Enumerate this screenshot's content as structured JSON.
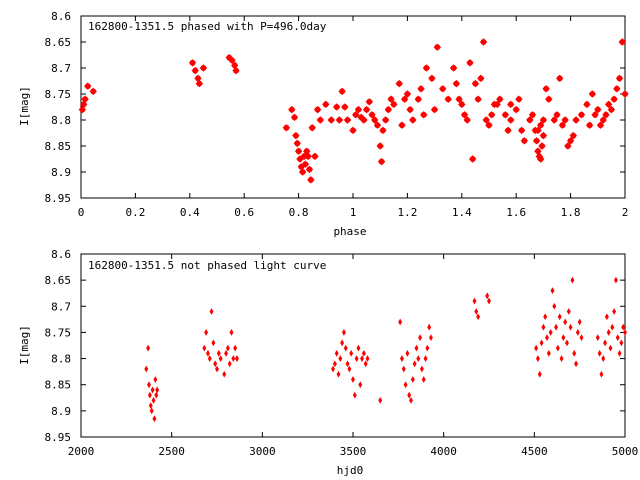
{
  "chart_data": [
    {
      "type": "scatter",
      "title": "162800-1351.5 phased with P=496.0day",
      "xlabel": "phase",
      "ylabel": "I[mag]",
      "xlim": [
        0,
        2
      ],
      "ylim": [
        8.95,
        8.6
      ],
      "y_inverted": true,
      "grid": false,
      "marker_color": "#ff0000",
      "xticks": [
        "0",
        "0.2",
        "0.4",
        "0.6",
        "0.8",
        "1",
        "1.2",
        "1.4",
        "1.6",
        "1.8",
        "2"
      ],
      "yticks": [
        "8.6",
        "8.65",
        "8.7",
        "8.75",
        "8.8",
        "8.85",
        "8.9",
        "8.95"
      ],
      "series": [
        {
          "points": [
            [
              0.005,
              8.78
            ],
            [
              0.01,
              8.77
            ],
            [
              0.015,
              8.76
            ],
            [
              0.025,
              8.735
            ],
            [
              0.045,
              8.745
            ],
            [
              0.41,
              8.69
            ],
            [
              0.42,
              8.705
            ],
            [
              0.43,
              8.72
            ],
            [
              0.435,
              8.73
            ],
            [
              0.545,
              8.68
            ],
            [
              0.555,
              8.685
            ],
            [
              0.565,
              8.695
            ],
            [
              0.57,
              8.705
            ],
            [
              0.755,
              8.815
            ],
            [
              0.775,
              8.78
            ],
            [
              0.785,
              8.795
            ],
            [
              0.79,
              8.83
            ],
            [
              0.795,
              8.845
            ],
            [
              0.8,
              8.86
            ],
            [
              0.805,
              8.875
            ],
            [
              0.81,
              8.89
            ],
            [
              0.815,
              8.9
            ],
            [
              0.82,
              8.87
            ],
            [
              0.825,
              8.885
            ],
            [
              0.83,
              8.86
            ],
            [
              0.835,
              8.87
            ],
            [
              0.84,
              8.895
            ],
            [
              0.845,
              8.915
            ],
            [
              0.85,
              8.815
            ],
            [
              0.86,
              8.87
            ],
            [
              0.87,
              8.78
            ],
            [
              0.88,
              8.8
            ],
            [
              0.9,
              8.77
            ],
            [
              0.92,
              8.8
            ],
            [
              0.94,
              8.775
            ],
            [
              0.95,
              8.8
            ],
            [
              0.96,
              8.745
            ],
            [
              0.97,
              8.775
            ],
            [
              0.98,
              8.8
            ],
            [
              1.0,
              8.82
            ],
            [
              1.01,
              8.79
            ],
            [
              1.02,
              8.78
            ],
            [
              1.03,
              8.795
            ],
            [
              1.04,
              8.8
            ],
            [
              1.05,
              8.78
            ],
            [
              1.06,
              8.765
            ],
            [
              1.07,
              8.79
            ],
            [
              1.08,
              8.8
            ],
            [
              1.09,
              8.81
            ],
            [
              1.1,
              8.85
            ],
            [
              1.105,
              8.88
            ],
            [
              1.11,
              8.82
            ],
            [
              1.12,
              8.8
            ],
            [
              1.13,
              8.78
            ],
            [
              1.14,
              8.76
            ],
            [
              1.15,
              8.77
            ],
            [
              1.17,
              8.73
            ],
            [
              1.18,
              8.81
            ],
            [
              1.19,
              8.76
            ],
            [
              1.2,
              8.75
            ],
            [
              1.21,
              8.78
            ],
            [
              1.22,
              8.8
            ],
            [
              1.24,
              8.76
            ],
            [
              1.25,
              8.74
            ],
            [
              1.26,
              8.79
            ],
            [
              1.27,
              8.7
            ],
            [
              1.29,
              8.72
            ],
            [
              1.31,
              8.66
            ],
            [
              1.33,
              8.74
            ],
            [
              1.35,
              8.76
            ],
            [
              1.37,
              8.7
            ],
            [
              1.38,
              8.73
            ],
            [
              1.39,
              8.76
            ],
            [
              1.4,
              8.77
            ],
            [
              1.41,
              8.79
            ],
            [
              1.42,
              8.8
            ],
            [
              1.43,
              8.69
            ],
            [
              1.45,
              8.73
            ],
            [
              1.46,
              8.76
            ],
            [
              1.47,
              8.72
            ],
            [
              1.48,
              8.65
            ],
            [
              1.49,
              8.8
            ],
            [
              1.5,
              8.81
            ],
            [
              1.51,
              8.79
            ],
            [
              1.52,
              8.77
            ],
            [
              1.54,
              8.76
            ],
            [
              1.56,
              8.79
            ],
            [
              1.58,
              8.8
            ],
            [
              1.6,
              8.78
            ],
            [
              1.61,
              8.76
            ],
            [
              1.62,
              8.82
            ],
            [
              1.63,
              8.84
            ],
            [
              1.65,
              8.8
            ],
            [
              1.66,
              8.79
            ],
            [
              1.67,
              8.82
            ],
            [
              1.675,
              8.84
            ],
            [
              1.68,
              8.86
            ],
            [
              1.685,
              8.87
            ],
            [
              1.69,
              8.875
            ],
            [
              1.695,
              8.85
            ],
            [
              1.7,
              8.8
            ],
            [
              1.71,
              8.74
            ],
            [
              1.72,
              8.76
            ],
            [
              1.74,
              8.8
            ],
            [
              1.75,
              8.79
            ],
            [
              1.77,
              8.81
            ],
            [
              1.79,
              8.85
            ],
            [
              1.8,
              8.84
            ],
            [
              1.81,
              8.83
            ],
            [
              1.82,
              8.8
            ],
            [
              1.84,
              8.79
            ],
            [
              1.86,
              8.77
            ],
            [
              1.88,
              8.75
            ],
            [
              1.9,
              8.78
            ],
            [
              1.91,
              8.81
            ],
            [
              1.92,
              8.8
            ],
            [
              1.93,
              8.79
            ],
            [
              1.94,
              8.77
            ],
            [
              1.95,
              8.78
            ],
            [
              1.96,
              8.76
            ],
            [
              1.97,
              8.74
            ],
            [
              1.98,
              8.72
            ],
            [
              1.99,
              8.65
            ],
            [
              2.0,
              8.75
            ],
            [
              0.45,
              8.7
            ],
            [
              1.3,
              8.78
            ],
            [
              1.44,
              8.875
            ],
            [
              1.53,
              8.77
            ],
            [
              1.57,
              8.82
            ],
            [
              1.58,
              8.77
            ],
            [
              1.68,
              8.82
            ],
            [
              1.69,
              8.81
            ],
            [
              1.7,
              8.83
            ],
            [
              1.76,
              8.72
            ],
            [
              1.78,
              8.8
            ],
            [
              1.87,
              8.81
            ],
            [
              1.89,
              8.79
            ]
          ]
        }
      ]
    },
    {
      "type": "scatter",
      "title": "162800-1351.5 not phased light curve",
      "xlabel": "hjd0",
      "ylabel": "I[mag]",
      "xlim": [
        2000,
        5000
      ],
      "ylim": [
        8.95,
        8.6
      ],
      "y_inverted": true,
      "grid": false,
      "marker_color": "#ff0000",
      "xticks": [
        "2000",
        "2500",
        "3000",
        "3500",
        "4000",
        "4500",
        "5000"
      ],
      "yticks": [
        "8.6",
        "8.65",
        "8.7",
        "8.75",
        "8.8",
        "8.85",
        "8.9",
        "8.95"
      ],
      "series": [
        {
          "points": [
            [
              2360,
              8.82
            ],
            [
              2370,
              8.78
            ],
            [
              2375,
              8.85
            ],
            [
              2380,
              8.87
            ],
            [
              2385,
              8.89
            ],
            [
              2390,
              8.9
            ],
            [
              2395,
              8.86
            ],
            [
              2400,
              8.88
            ],
            [
              2405,
              8.915
            ],
            [
              2410,
              8.84
            ],
            [
              2415,
              8.87
            ],
            [
              2420,
              8.86
            ],
            [
              2680,
              8.78
            ],
            [
              2690,
              8.75
            ],
            [
              2700,
              8.79
            ],
            [
              2710,
              8.8
            ],
            [
              2720,
              8.71
            ],
            [
              2730,
              8.77
            ],
            [
              2740,
              8.81
            ],
            [
              2750,
              8.82
            ],
            [
              2760,
              8.79
            ],
            [
              2770,
              8.8
            ],
            [
              2790,
              8.83
            ],
            [
              2800,
              8.79
            ],
            [
              2810,
              8.78
            ],
            [
              2820,
              8.81
            ],
            [
              2830,
              8.75
            ],
            [
              2840,
              8.8
            ],
            [
              2850,
              8.78
            ],
            [
              2860,
              8.8
            ],
            [
              3390,
              8.82
            ],
            [
              3400,
              8.81
            ],
            [
              3410,
              8.79
            ],
            [
              3420,
              8.83
            ],
            [
              3430,
              8.8
            ],
            [
              3440,
              8.77
            ],
            [
              3450,
              8.75
            ],
            [
              3460,
              8.78
            ],
            [
              3470,
              8.81
            ],
            [
              3480,
              8.82
            ],
            [
              3490,
              8.79
            ],
            [
              3500,
              8.84
            ],
            [
              3510,
              8.87
            ],
            [
              3520,
              8.8
            ],
            [
              3530,
              8.78
            ],
            [
              3540,
              8.85
            ],
            [
              3550,
              8.8
            ],
            [
              3560,
              8.79
            ],
            [
              3570,
              8.81
            ],
            [
              3580,
              8.8
            ],
            [
              3650,
              8.88
            ],
            [
              3760,
              8.73
            ],
            [
              3770,
              8.8
            ],
            [
              3780,
              8.82
            ],
            [
              3790,
              8.85
            ],
            [
              3800,
              8.79
            ],
            [
              3810,
              8.87
            ],
            [
              3820,
              8.88
            ],
            [
              3830,
              8.84
            ],
            [
              3840,
              8.81
            ],
            [
              3850,
              8.78
            ],
            [
              3860,
              8.8
            ],
            [
              3870,
              8.76
            ],
            [
              3880,
              8.82
            ],
            [
              3890,
              8.84
            ],
            [
              3900,
              8.8
            ],
            [
              3910,
              8.78
            ],
            [
              3920,
              8.74
            ],
            [
              3930,
              8.76
            ],
            [
              4170,
              8.69
            ],
            [
              4180,
              8.71
            ],
            [
              4190,
              8.72
            ],
            [
              4240,
              8.68
            ],
            [
              4250,
              8.69
            ],
            [
              4510,
              8.78
            ],
            [
              4520,
              8.8
            ],
            [
              4530,
              8.83
            ],
            [
              4540,
              8.77
            ],
            [
              4550,
              8.74
            ],
            [
              4560,
              8.72
            ],
            [
              4570,
              8.76
            ],
            [
              4580,
              8.79
            ],
            [
              4590,
              8.75
            ],
            [
              4600,
              8.67
            ],
            [
              4610,
              8.7
            ],
            [
              4620,
              8.74
            ],
            [
              4630,
              8.78
            ],
            [
              4640,
              8.72
            ],
            [
              4650,
              8.8
            ],
            [
              4660,
              8.76
            ],
            [
              4670,
              8.73
            ],
            [
              4680,
              8.77
            ],
            [
              4690,
              8.71
            ],
            [
              4700,
              8.74
            ],
            [
              4710,
              8.65
            ],
            [
              4720,
              8.79
            ],
            [
              4730,
              8.81
            ],
            [
              4740,
              8.75
            ],
            [
              4750,
              8.73
            ],
            [
              4760,
              8.76
            ],
            [
              4850,
              8.76
            ],
            [
              4860,
              8.79
            ],
            [
              4870,
              8.83
            ],
            [
              4880,
              8.8
            ],
            [
              4890,
              8.77
            ],
            [
              4900,
              8.72
            ],
            [
              4910,
              8.75
            ],
            [
              4920,
              8.78
            ],
            [
              4930,
              8.74
            ],
            [
              4940,
              8.71
            ],
            [
              4950,
              8.65
            ],
            [
              4960,
              8.76
            ],
            [
              4970,
              8.79
            ],
            [
              4980,
              8.77
            ],
            [
              4990,
              8.74
            ],
            [
              5000,
              8.75
            ]
          ]
        }
      ]
    }
  ]
}
